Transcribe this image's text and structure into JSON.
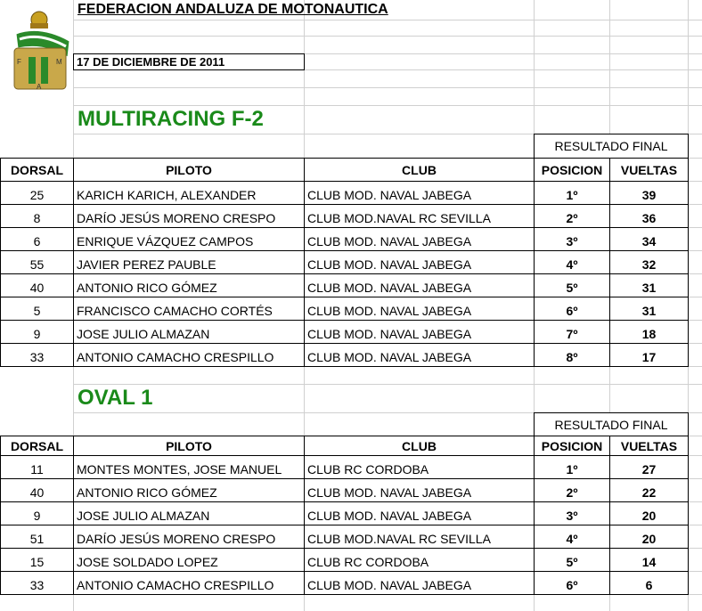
{
  "header": {
    "title": "FEDERACION ANDALUZA DE MOTONAUTICA",
    "date": "17 DE DICIEMBRE DE 2011",
    "logo_letters": [
      "F",
      "M",
      "A"
    ]
  },
  "sections": [
    {
      "title": "MULTIRACING F-2",
      "group": "RESULTADO FINAL",
      "columns": [
        "DORSAL",
        "PILOTO",
        "CLUB",
        "POSICION",
        "VUELTAS"
      ],
      "rows": [
        [
          "25",
          "KARICH KARICH, ALEXANDER",
          "CLUB MOD. NAVAL JABEGA",
          "1º",
          "39"
        ],
        [
          "8",
          "DARÍO JESÚS MORENO CRESPO",
          "CLUB MOD.NAVAL RC SEVILLA",
          "2º",
          "36"
        ],
        [
          "6",
          "ENRIQUE VÁZQUEZ CAMPOS",
          "CLUB MOD. NAVAL JABEGA",
          "3º",
          "34"
        ],
        [
          "55",
          "JAVIER PEREZ PAUBLE",
          "CLUB MOD. NAVAL JABEGA",
          "4º",
          "32"
        ],
        [
          "40",
          "ANTONIO RICO GÓMEZ",
          "CLUB MOD. NAVAL JABEGA",
          "5º",
          "31"
        ],
        [
          "5",
          "FRANCISCO CAMACHO CORTÉS",
          "CLUB MOD. NAVAL JABEGA",
          "6º",
          "31"
        ],
        [
          "9",
          "JOSE JULIO ALMAZAN",
          "CLUB MOD. NAVAL JABEGA",
          "7º",
          "18"
        ],
        [
          "33",
          "ANTONIO CAMACHO CRESPILLO",
          "CLUB MOD. NAVAL JABEGA",
          "8º",
          "17"
        ]
      ]
    },
    {
      "title": "OVAL 1",
      "group": "RESULTADO FINAL",
      "columns": [
        "DORSAL",
        "PILOTO",
        "CLUB",
        "POSICION",
        "VUELTAS"
      ],
      "rows": [
        [
          "11",
          "MONTES MONTES, JOSE MANUEL",
          "CLUB RC CORDOBA",
          "1º",
          "27"
        ],
        [
          "40",
          "ANTONIO RICO GÓMEZ",
          "CLUB MOD. NAVAL JABEGA",
          "2º",
          "22"
        ],
        [
          "9",
          "JOSE JULIO ALMAZAN",
          "CLUB MOD. NAVAL JABEGA",
          "3º",
          "20"
        ],
        [
          "51",
          "DARÍO JESÚS MORENO CRESPO",
          "CLUB MOD.NAVAL RC SEVILLA",
          "4º",
          "20"
        ],
        [
          "15",
          "JOSE SOLDADO LOPEZ",
          "CLUB RC CORDOBA",
          "5º",
          "14"
        ],
        [
          "33",
          "ANTONIO CAMACHO CRESPILLO",
          "CLUB MOD. NAVAL JABEGA",
          "6º",
          "6"
        ]
      ]
    }
  ]
}
